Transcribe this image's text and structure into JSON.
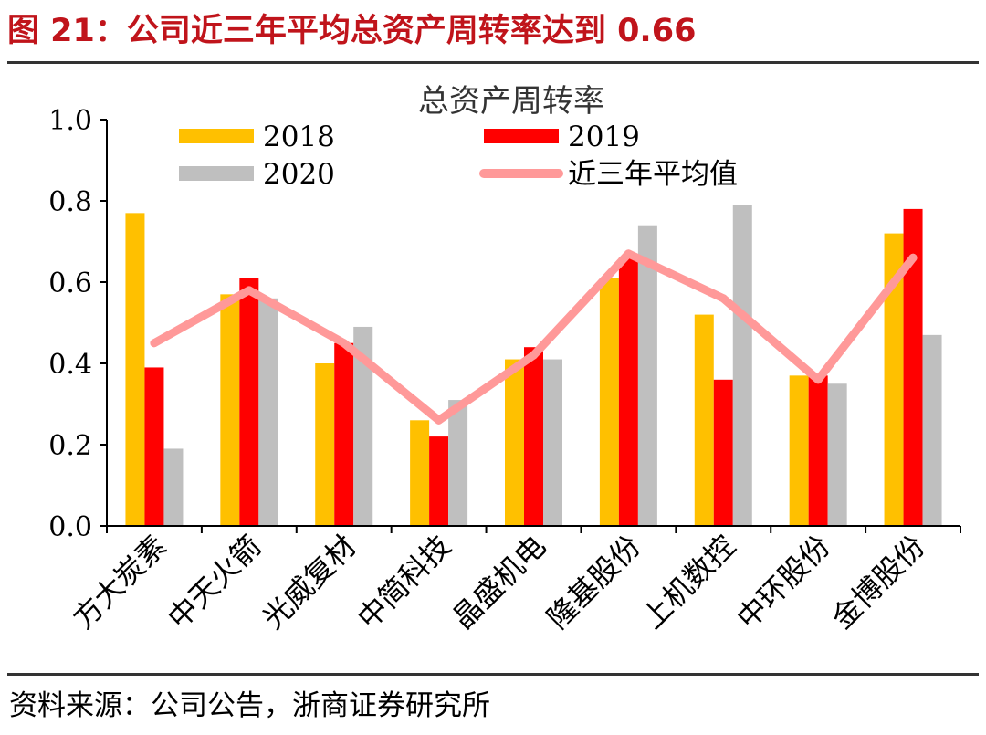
{
  "figure": {
    "title": "图 21：公司近三年平均总资产周转率达到 0.66",
    "source": "资料来源：公司公告，浙商证券研究所"
  },
  "chart_data": {
    "type": "bar",
    "title": "总资产周转率",
    "xlabel": "",
    "ylabel": "",
    "ylim": [
      0,
      1.0
    ],
    "yticks": [
      "0.0",
      "0.2",
      "0.4",
      "0.6",
      "0.8",
      "1.0"
    ],
    "categories": [
      "方大炭素",
      "中天火箭",
      "光威复材",
      "中简科技",
      "晶盛机电",
      "隆基股份",
      "上机数控",
      "中环股份",
      "金博股份"
    ],
    "series": [
      {
        "name": "2018",
        "kind": "bar",
        "color": "#ffc000",
        "values": [
          0.77,
          0.57,
          0.4,
          0.26,
          0.41,
          0.61,
          0.52,
          0.37,
          0.72
        ]
      },
      {
        "name": "2019",
        "kind": "bar",
        "color": "#ff0000",
        "values": [
          0.39,
          0.61,
          0.45,
          0.22,
          0.44,
          0.66,
          0.36,
          0.37,
          0.78
        ]
      },
      {
        "name": "2020",
        "kind": "bar",
        "color": "#bfbfbf",
        "values": [
          0.19,
          0.56,
          0.49,
          0.31,
          0.41,
          0.74,
          0.79,
          0.35,
          0.47
        ]
      },
      {
        "name": "近三年平均值",
        "kind": "line",
        "color": "#ff9999",
        "values": [
          0.45,
          0.58,
          0.45,
          0.26,
          0.42,
          0.67,
          0.56,
          0.36,
          0.66
        ]
      }
    ],
    "legend": "top"
  }
}
